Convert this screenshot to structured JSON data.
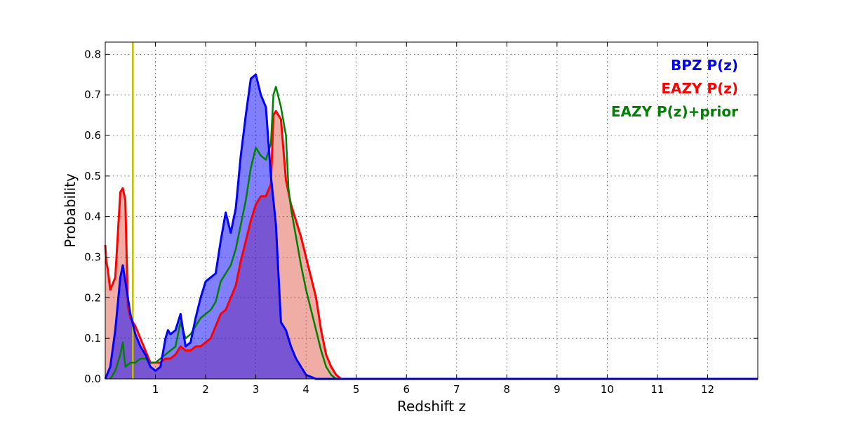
{
  "chart_data": {
    "type": "area",
    "title": "",
    "xlabel": "Redshift z",
    "ylabel": "Probability",
    "xlim": [
      0,
      13
    ],
    "ylim": [
      0,
      0.83
    ],
    "xticks": [
      1,
      2,
      3,
      4,
      5,
      6,
      7,
      8,
      9,
      10,
      11,
      12
    ],
    "yticks": [
      0.0,
      0.1,
      0.2,
      0.3,
      0.4,
      0.5,
      0.6,
      0.7,
      0.8
    ],
    "grid": true,
    "legend_position": "top-right",
    "vline": {
      "x": 0.55,
      "color": "#bfbf00"
    },
    "series": [
      {
        "name": "BPZ P(z)",
        "color": "#0000ff",
        "fill": "#0000ff",
        "points": [
          [
            0,
            0.0
          ],
          [
            0.1,
            0.03
          ],
          [
            0.2,
            0.12
          ],
          [
            0.3,
            0.25
          ],
          [
            0.35,
            0.28
          ],
          [
            0.4,
            0.24
          ],
          [
            0.5,
            0.16
          ],
          [
            0.6,
            0.11
          ],
          [
            0.7,
            0.08
          ],
          [
            0.8,
            0.06
          ],
          [
            0.9,
            0.03
          ],
          [
            1.0,
            0.02
          ],
          [
            1.1,
            0.03
          ],
          [
            1.2,
            0.1
          ],
          [
            1.25,
            0.12
          ],
          [
            1.3,
            0.11
          ],
          [
            1.4,
            0.12
          ],
          [
            1.5,
            0.16
          ],
          [
            1.6,
            0.08
          ],
          [
            1.7,
            0.09
          ],
          [
            1.8,
            0.15
          ],
          [
            1.9,
            0.2
          ],
          [
            2.0,
            0.24
          ],
          [
            2.1,
            0.25
          ],
          [
            2.2,
            0.26
          ],
          [
            2.3,
            0.34
          ],
          [
            2.4,
            0.41
          ],
          [
            2.5,
            0.36
          ],
          [
            2.6,
            0.42
          ],
          [
            2.7,
            0.55
          ],
          [
            2.8,
            0.65
          ],
          [
            2.9,
            0.74
          ],
          [
            3.0,
            0.75
          ],
          [
            3.1,
            0.7
          ],
          [
            3.2,
            0.67
          ],
          [
            3.3,
            0.5
          ],
          [
            3.4,
            0.38
          ],
          [
            3.5,
            0.14
          ],
          [
            3.6,
            0.12
          ],
          [
            3.7,
            0.08
          ],
          [
            3.8,
            0.05
          ],
          [
            3.9,
            0.03
          ],
          [
            4.0,
            0.01
          ],
          [
            4.2,
            0.0
          ],
          [
            13,
            0.0
          ]
        ]
      },
      {
        "name": "EAZY P(z)",
        "color": "#ff0000",
        "fill": "#dd4a3a",
        "points": [
          [
            0,
            0.33
          ],
          [
            0.02,
            0.29
          ],
          [
            0.05,
            0.27
          ],
          [
            0.1,
            0.22
          ],
          [
            0.2,
            0.25
          ],
          [
            0.3,
            0.46
          ],
          [
            0.35,
            0.47
          ],
          [
            0.4,
            0.44
          ],
          [
            0.45,
            0.18
          ],
          [
            0.5,
            0.15
          ],
          [
            0.6,
            0.13
          ],
          [
            0.7,
            0.1
          ],
          [
            0.8,
            0.07
          ],
          [
            0.9,
            0.04
          ],
          [
            1.0,
            0.04
          ],
          [
            1.1,
            0.04
          ],
          [
            1.2,
            0.05
          ],
          [
            1.3,
            0.05
          ],
          [
            1.4,
            0.06
          ],
          [
            1.5,
            0.08
          ],
          [
            1.6,
            0.07
          ],
          [
            1.7,
            0.07
          ],
          [
            1.8,
            0.08
          ],
          [
            1.9,
            0.08
          ],
          [
            2.0,
            0.09
          ],
          [
            2.1,
            0.1
          ],
          [
            2.2,
            0.13
          ],
          [
            2.3,
            0.16
          ],
          [
            2.4,
            0.17
          ],
          [
            2.5,
            0.2
          ],
          [
            2.6,
            0.23
          ],
          [
            2.7,
            0.29
          ],
          [
            2.8,
            0.34
          ],
          [
            2.9,
            0.39
          ],
          [
            3.0,
            0.43
          ],
          [
            3.1,
            0.45
          ],
          [
            3.2,
            0.45
          ],
          [
            3.3,
            0.48
          ],
          [
            3.35,
            0.65
          ],
          [
            3.4,
            0.66
          ],
          [
            3.5,
            0.64
          ],
          [
            3.6,
            0.49
          ],
          [
            3.7,
            0.43
          ],
          [
            3.8,
            0.39
          ],
          [
            3.9,
            0.35
          ],
          [
            4.0,
            0.3
          ],
          [
            4.1,
            0.25
          ],
          [
            4.2,
            0.2
          ],
          [
            4.3,
            0.12
          ],
          [
            4.4,
            0.06
          ],
          [
            4.5,
            0.03
          ],
          [
            4.6,
            0.01
          ],
          [
            4.7,
            0.0
          ],
          [
            13,
            0.0
          ]
        ]
      },
      {
        "name": "EAZY P(z)+prior",
        "color": "#008000",
        "fill": "none",
        "points": [
          [
            0.1,
            0.0
          ],
          [
            0.2,
            0.02
          ],
          [
            0.3,
            0.06
          ],
          [
            0.35,
            0.09
          ],
          [
            0.4,
            0.03
          ],
          [
            0.5,
            0.04
          ],
          [
            0.6,
            0.04
          ],
          [
            0.7,
            0.05
          ],
          [
            0.8,
            0.05
          ],
          [
            0.9,
            0.04
          ],
          [
            1.0,
            0.04
          ],
          [
            1.1,
            0.05
          ],
          [
            1.2,
            0.06
          ],
          [
            1.3,
            0.07
          ],
          [
            1.4,
            0.08
          ],
          [
            1.5,
            0.14
          ],
          [
            1.6,
            0.1
          ],
          [
            1.7,
            0.11
          ],
          [
            1.8,
            0.13
          ],
          [
            1.9,
            0.15
          ],
          [
            2.0,
            0.16
          ],
          [
            2.1,
            0.17
          ],
          [
            2.2,
            0.19
          ],
          [
            2.3,
            0.24
          ],
          [
            2.4,
            0.26
          ],
          [
            2.5,
            0.28
          ],
          [
            2.6,
            0.32
          ],
          [
            2.7,
            0.38
          ],
          [
            2.8,
            0.44
          ],
          [
            2.9,
            0.52
          ],
          [
            3.0,
            0.57
          ],
          [
            3.1,
            0.55
          ],
          [
            3.2,
            0.54
          ],
          [
            3.3,
            0.58
          ],
          [
            3.35,
            0.7
          ],
          [
            3.4,
            0.72
          ],
          [
            3.5,
            0.67
          ],
          [
            3.6,
            0.6
          ],
          [
            3.65,
            0.47
          ],
          [
            3.7,
            0.42
          ],
          [
            3.8,
            0.35
          ],
          [
            3.9,
            0.28
          ],
          [
            4.0,
            0.22
          ],
          [
            4.1,
            0.17
          ],
          [
            4.2,
            0.12
          ],
          [
            4.3,
            0.07
          ],
          [
            4.4,
            0.03
          ],
          [
            4.5,
            0.01
          ],
          [
            4.6,
            0.0
          ],
          [
            13,
            0.0
          ]
        ]
      }
    ]
  }
}
